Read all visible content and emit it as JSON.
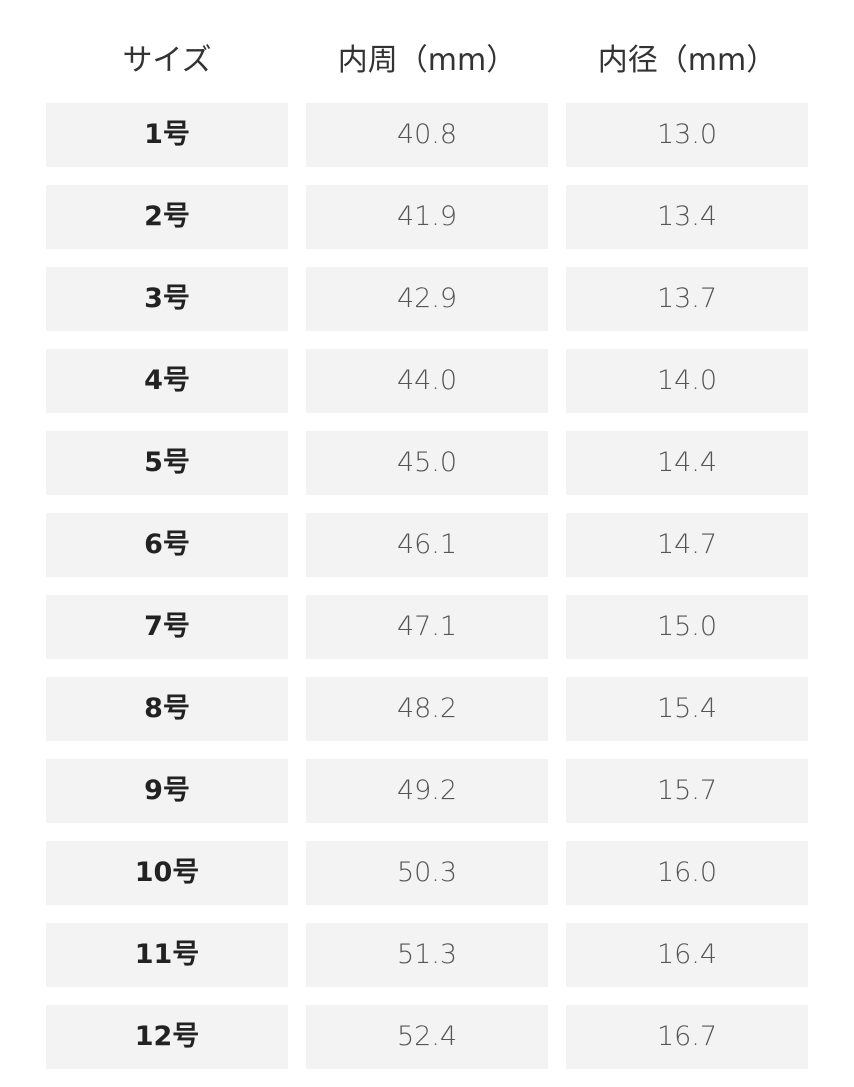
{
  "table": {
    "headers": [
      "サイズ",
      "内周（mm）",
      "内径（mm）"
    ],
    "rows": [
      [
        "1号",
        "40.8",
        "13.0"
      ],
      [
        "2号",
        "41.9",
        "13.4"
      ],
      [
        "3号",
        "42.9",
        "13.7"
      ],
      [
        "4号",
        "44.0",
        "14.0"
      ],
      [
        "5号",
        "45.0",
        "14.4"
      ],
      [
        "6号",
        "46.1",
        "14.7"
      ],
      [
        "7号",
        "47.1",
        "15.0"
      ],
      [
        "8号",
        "48.2",
        "15.4"
      ],
      [
        "9号",
        "49.2",
        "15.7"
      ],
      [
        "10号",
        "50.3",
        "16.0"
      ],
      [
        "11号",
        "51.3",
        "16.4"
      ],
      [
        "12号",
        "52.4",
        "16.7"
      ]
    ]
  }
}
